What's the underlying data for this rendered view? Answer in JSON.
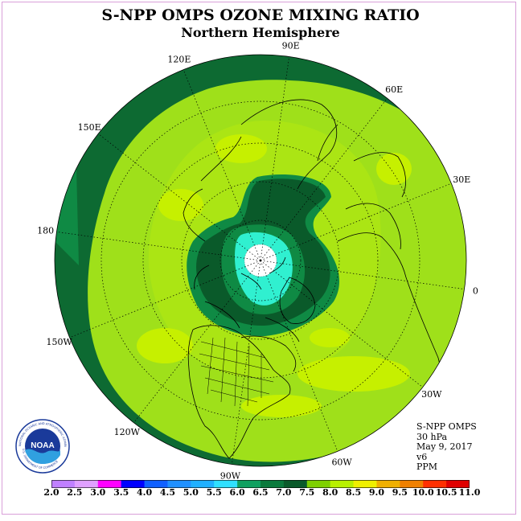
{
  "title": "S-NPP OMPS OZONE MIXING RATIO",
  "subtitle": "Northern Hemisphere",
  "longitude_labels": [
    {
      "text": "90E",
      "lon": 90
    },
    {
      "text": "60E",
      "lon": 60
    },
    {
      "text": "30E",
      "lon": 30
    },
    {
      "text": "0",
      "lon": 0
    },
    {
      "text": "30W",
      "lon": -30
    },
    {
      "text": "60W",
      "lon": -60
    },
    {
      "text": "90W",
      "lon": -90
    },
    {
      "text": "120W",
      "lon": -120
    },
    {
      "text": "150W",
      "lon": -150
    },
    {
      "text": "180",
      "lon": 180
    },
    {
      "text": "150E",
      "lon": 150
    },
    {
      "text": "120E",
      "lon": 120
    }
  ],
  "info": {
    "instrument": "S-NPP OMPS",
    "level": "30 hPa",
    "date": "May 9, 2017",
    "version": "v6",
    "units": "PPM"
  },
  "colorbar": {
    "labels": [
      "2.0",
      "2.5",
      "3.0",
      "3.5",
      "4.0",
      "4.5",
      "5.0",
      "5.5",
      "6.0",
      "6.5",
      "7.0",
      "7.5",
      "8.0",
      "8.5",
      "9.0",
      "9.5",
      "10.0",
      "10.5",
      "11.0"
    ],
    "colors": [
      "#c080ff",
      "#e0a0ff",
      "#ff00ff",
      "#0000ff",
      "#1060ff",
      "#2090ff",
      "#20b0ff",
      "#30e0ff",
      "#10a060",
      "#0a7a3c",
      "#0a5a2a",
      "#7ed000",
      "#b8f000",
      "#f0f000",
      "#f0b000",
      "#f08000",
      "#ff3000",
      "#e00000",
      "#7a4a30"
    ]
  },
  "logo": {
    "text": "NOAA",
    "ring_text": "NATIONAL OCEANIC AND ATMOSPHERIC ADMINISTRATION",
    "ring_text_bottom": "U.S. DEPARTMENT OF COMMERCE"
  },
  "colors": {
    "ring_outer": "#0d6a32",
    "field_main": "#9fe01a",
    "field_light": "#c6f000",
    "vortex_mid": "#0f8a44",
    "vortex_dark": "#0a5a2a",
    "vortex_core": "#30f0d0"
  }
}
